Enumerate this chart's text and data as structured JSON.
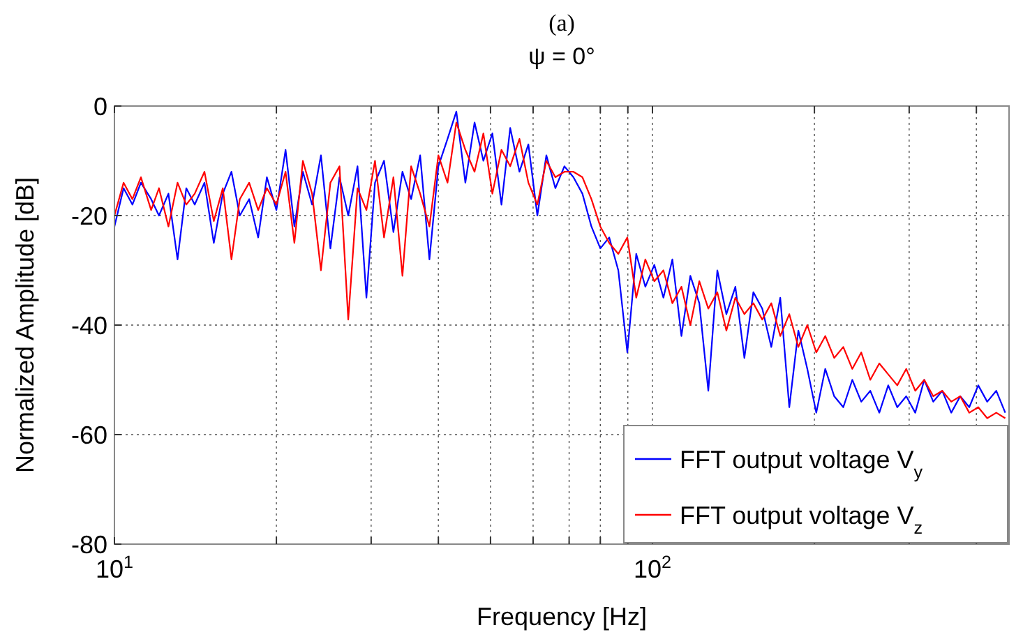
{
  "chart_data": {
    "type": "line",
    "title": "(a)",
    "subtitle": "ψ = 0°",
    "xlabel": "Frequency [Hz]",
    "ylabel": "Normalized Amplitude [dB]",
    "x": [
      10,
      10.4,
      10.8,
      11.2,
      11.7,
      12.1,
      12.6,
      13.1,
      13.6,
      14.1,
      14.7,
      15.3,
      15.9,
      16.5,
      17.1,
      17.8,
      18.5,
      19.2,
      20,
      20.8,
      21.6,
      22.4,
      23.3,
      24.2,
      25.2,
      26.2,
      27.2,
      28.3,
      29.4,
      30.5,
      31.7,
      33,
      34.3,
      35.6,
      37,
      38.5,
      40,
      41.6,
      43.2,
      44.9,
      46.7,
      48.5,
      50.4,
      52.4,
      54.4,
      56.6,
      58.8,
      61.1,
      63.5,
      66,
      68.6,
      71.3,
      74.1,
      77,
      80,
      83.1,
      86.4,
      89.8,
      93.3,
      97,
      100.8,
      104.8,
      108.9,
      113.2,
      117.6,
      122.2,
      127,
      132,
      137.2,
      142.6,
      148.2,
      154,
      160,
      166.3,
      172.8,
      179.6,
      186.7,
      194,
      201.6,
      209.5,
      217.7,
      226.3,
      235.2,
      244.4,
      254,
      264,
      274.3,
      285.1,
      296.3,
      307.9,
      320,
      332.6,
      345.6,
      359.2,
      373.3,
      388,
      403.2,
      419,
      435.5,
      452.6
    ],
    "series": [
      {
        "name": "FFT output voltage V$_{y}$",
        "color": "#0000ff",
        "values": [
          -22,
          -15,
          -18,
          -14,
          -17,
          -20,
          -16,
          -28,
          -15,
          -18,
          -14,
          -25,
          -16,
          -12,
          -20,
          -17,
          -24,
          -13,
          -19,
          -8,
          -22,
          -12,
          -18,
          -9,
          -26,
          -13,
          -20,
          -11,
          -35,
          -14,
          -10,
          -23,
          -12,
          -17,
          -9,
          -28,
          -11,
          -6,
          -1,
          -14,
          -3,
          -10,
          -5,
          -18,
          -4,
          -12,
          -7,
          -20,
          -9,
          -15,
          -11,
          -13,
          -16,
          -22,
          -26,
          -24,
          -30,
          -45,
          -27,
          -33,
          -29,
          -35,
          -28,
          -42,
          -31,
          -36,
          -52,
          -30,
          -38,
          -33,
          -46,
          -34,
          -37,
          -44,
          -35,
          -55,
          -41,
          -48,
          -56,
          -48,
          -53,
          -55,
          -50,
          -54,
          -52,
          -56,
          -51,
          -55,
          -53,
          -56,
          -50,
          -54,
          -52,
          -56,
          -53,
          -55,
          -51,
          -54,
          -52,
          -56
        ]
      },
      {
        "name": "FFT output voltage V$_{z}$",
        "color": "#ff0000",
        "values": [
          -20,
          -14,
          -17,
          -13,
          -19,
          -15,
          -22,
          -14,
          -18,
          -16,
          -12,
          -21,
          -15,
          -28,
          -17,
          -14,
          -19,
          -15,
          -18,
          -12,
          -25,
          -10,
          -16,
          -30,
          -14,
          -11,
          -39,
          -15,
          -19,
          -10,
          -24,
          -13,
          -31,
          -11,
          -16,
          -22,
          -9,
          -14,
          -3,
          -8,
          -12,
          -5,
          -16,
          -8,
          -11,
          -6,
          -14,
          -18,
          -10,
          -13,
          -12,
          -12,
          -13,
          -17,
          -22,
          -25,
          -27,
          -24,
          -35,
          -28,
          -32,
          -30,
          -36,
          -33,
          -40,
          -32,
          -37,
          -34,
          -41,
          -35,
          -38,
          -36,
          -39,
          -36,
          -42,
          -38,
          -44,
          -40,
          -45,
          -42,
          -46,
          -44,
          -48,
          -45,
          -50,
          -47,
          -49,
          -51,
          -48,
          -52,
          -50,
          -53,
          -52,
          -54,
          -53,
          -56,
          -55,
          -57,
          -56,
          -57
        ]
      }
    ],
    "log": "x",
    "xlim": [
      10,
      460
    ],
    "ylim": [
      -80,
      0
    ],
    "xticks": [
      {
        "value": 10,
        "label": "10$^{1}$"
      },
      {
        "value": 20,
        "label": null
      },
      {
        "value": 30,
        "label": null
      },
      {
        "value": 40,
        "label": null
      },
      {
        "value": 50,
        "label": null
      },
      {
        "value": 60,
        "label": null
      },
      {
        "value": 70,
        "label": null
      },
      {
        "value": 80,
        "label": null
      },
      {
        "value": 90,
        "label": null
      },
      {
        "value": 100,
        "label": "10$^{2}$"
      },
      {
        "value": 200,
        "label": null
      },
      {
        "value": 300,
        "label": null
      },
      {
        "value": 400,
        "label": null
      }
    ],
    "yticks": [
      -80,
      -60,
      -40,
      -20,
      0
    ],
    "grid": true,
    "legend": "bottom right",
    "line_style": "solid"
  }
}
